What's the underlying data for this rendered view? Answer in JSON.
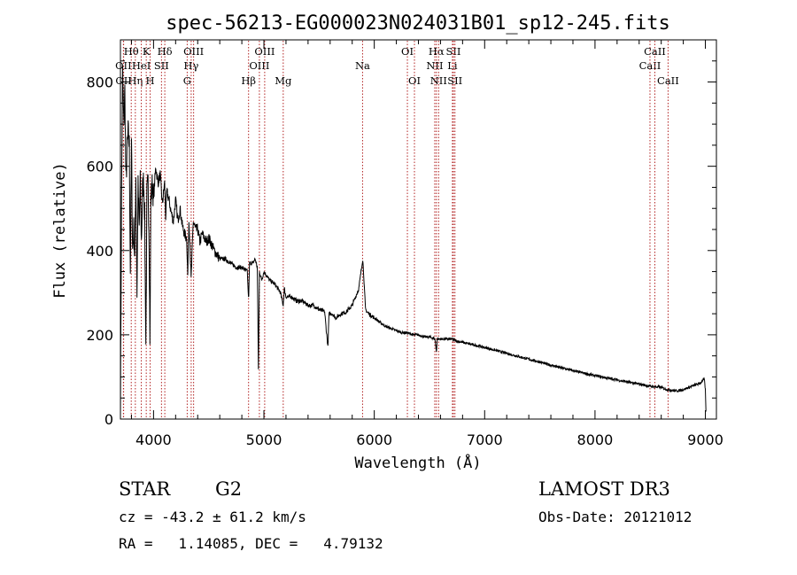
{
  "chart_data": {
    "type": "line",
    "title": "spec-56213-EG000023N024031B01_sp12-245.fits",
    "xlabel": "Wavelength (Å)",
    "ylabel": "Flux (relative)",
    "xlim": [
      3700,
      9100
    ],
    "ylim": [
      0,
      900
    ],
    "xticks": [
      4000,
      5000,
      6000,
      7000,
      8000,
      9000
    ],
    "yticks": [
      0,
      200,
      400,
      600,
      800
    ],
    "series": [
      {
        "name": "flux",
        "x": [
          3700,
          3712,
          3720,
          3730,
          3740,
          3750,
          3760,
          3770,
          3780,
          3790,
          3800,
          3810,
          3820,
          3830,
          3840,
          3850,
          3860,
          3870,
          3880,
          3890,
          3900,
          3910,
          3920,
          3930,
          3935,
          3940,
          3950,
          3960,
          3968,
          3975,
          3990,
          4000,
          4020,
          4040,
          4060,
          4080,
          4100,
          4110,
          4120,
          4140,
          4160,
          4180,
          4200,
          4220,
          4240,
          4260,
          4280,
          4300,
          4310,
          4320,
          4330,
          4340,
          4360,
          4380,
          4400,
          4420,
          4440,
          4460,
          4480,
          4500,
          4550,
          4600,
          4650,
          4700,
          4750,
          4800,
          4850,
          4861,
          4870,
          4900,
          4920,
          4940,
          4950,
          4960,
          4980,
          5000,
          5050,
          5100,
          5150,
          5175,
          5185,
          5200,
          5250,
          5300,
          5350,
          5400,
          5450,
          5500,
          5550,
          5580,
          5590,
          5620,
          5650,
          5700,
          5750,
          5800,
          5830,
          5860,
          5880,
          5895,
          5905,
          5920,
          5950,
          6000,
          6050,
          6100,
          6150,
          6200,
          6250,
          6300,
          6350,
          6400,
          6450,
          6500,
          6550,
          6563,
          6570,
          6600,
          6650,
          6700,
          6750,
          6800,
          6900,
          7000,
          7100,
          7200,
          7300,
          7400,
          7500,
          7600,
          7700,
          7800,
          7900,
          8000,
          8100,
          8200,
          8300,
          8400,
          8500,
          8600,
          8650,
          8700,
          8750,
          8800,
          8850,
          8900,
          8950,
          8990,
          9000,
          9005
        ],
        "y": [
          20,
          600,
          820,
          700,
          780,
          560,
          640,
          680,
          650,
          350,
          650,
          400,
          450,
          380,
          580,
          300,
          550,
          450,
          560,
          420,
          540,
          570,
          480,
          180,
          350,
          530,
          560,
          430,
          180,
          520,
          560,
          520,
          600,
          560,
          580,
          510,
          560,
          480,
          540,
          520,
          490,
          470,
          520,
          470,
          500,
          460,
          440,
          430,
          340,
          470,
          420,
          330,
          470,
          450,
          450,
          420,
          440,
          430,
          420,
          430,
          400,
          380,
          380,
          370,
          360,
          360,
          350,
          280,
          370,
          370,
          380,
          360,
          120,
          350,
          330,
          350,
          330,
          320,
          300,
          270,
          310,
          290,
          290,
          280,
          280,
          270,
          270,
          260,
          255,
          170,
          250,
          250,
          240,
          250,
          255,
          270,
          290,
          310,
          350,
          380,
          340,
          260,
          250,
          240,
          230,
          220,
          215,
          210,
          205,
          205,
          200,
          200,
          195,
          195,
          190,
          160,
          190,
          190,
          190,
          190,
          185,
          182,
          176,
          170,
          163,
          156,
          149,
          142,
          135,
          128,
          121,
          115,
          109,
          103,
          98,
          93,
          88,
          83,
          78,
          75,
          70,
          68,
          67,
          70,
          75,
          80,
          85,
          95,
          70,
          20
        ]
      }
    ],
    "lines": [
      {
        "label": "OII",
        "x": 3727,
        "row": 2
      },
      {
        "label": "OII",
        "x": 3729,
        "row": 3
      },
      {
        "label": "Hθ",
        "x": 3798,
        "row": 1
      },
      {
        "label": "Hη",
        "x": 3835,
        "row": 3
      },
      {
        "label": "HeI",
        "x": 3889,
        "row": 2
      },
      {
        "label": "K",
        "x": 3934,
        "row": 1
      },
      {
        "label": "H",
        "x": 3969,
        "row": 3
      },
      {
        "label": "SII",
        "x": 4072,
        "row": 2
      },
      {
        "label": "Hδ",
        "x": 4102,
        "row": 1
      },
      {
        "label": "G",
        "x": 4305,
        "row": 3
      },
      {
        "label": "Hγ",
        "x": 4341,
        "row": 2
      },
      {
        "label": "OIII",
        "x": 4363,
        "row": 1
      },
      {
        "label": "Hβ",
        "x": 4861,
        "row": 3
      },
      {
        "label": "OIII",
        "x": 4959,
        "row": 2
      },
      {
        "label": "OIII",
        "x": 5007,
        "row": 1
      },
      {
        "label": "Mg",
        "x": 5175,
        "row": 3
      },
      {
        "label": "Na",
        "x": 5894,
        "row": 2
      },
      {
        "label": "OI",
        "x": 6300,
        "row": 1
      },
      {
        "label": "OI",
        "x": 6364,
        "row": 3
      },
      {
        "label": "NII",
        "x": 6548,
        "row": 2
      },
      {
        "label": "Hα",
        "x": 6563,
        "row": 1
      },
      {
        "label": "NII",
        "x": 6583,
        "row": 3
      },
      {
        "label": "Li",
        "x": 6708,
        "row": 2
      },
      {
        "label": "SII",
        "x": 6717,
        "row": 1
      },
      {
        "label": "SII",
        "x": 6731,
        "row": 3
      },
      {
        "label": "CaII",
        "x": 8498,
        "row": 2
      },
      {
        "label": "CaII",
        "x": 8542,
        "row": 1
      },
      {
        "label": "CaII",
        "x": 8662,
        "row": 3
      }
    ]
  },
  "colors": {
    "line_marker": "#b22222",
    "spectrum": "#000000",
    "axes": "#000000"
  },
  "info": {
    "object_class": "STAR",
    "subclass": "G2",
    "survey": "LAMOST DR3",
    "cz": "cz = -43.2 ± 61.2 km/s",
    "obs_date": "Obs-Date: 20121012",
    "coords": "RA =   1.14085, DEC =   4.79132"
  }
}
